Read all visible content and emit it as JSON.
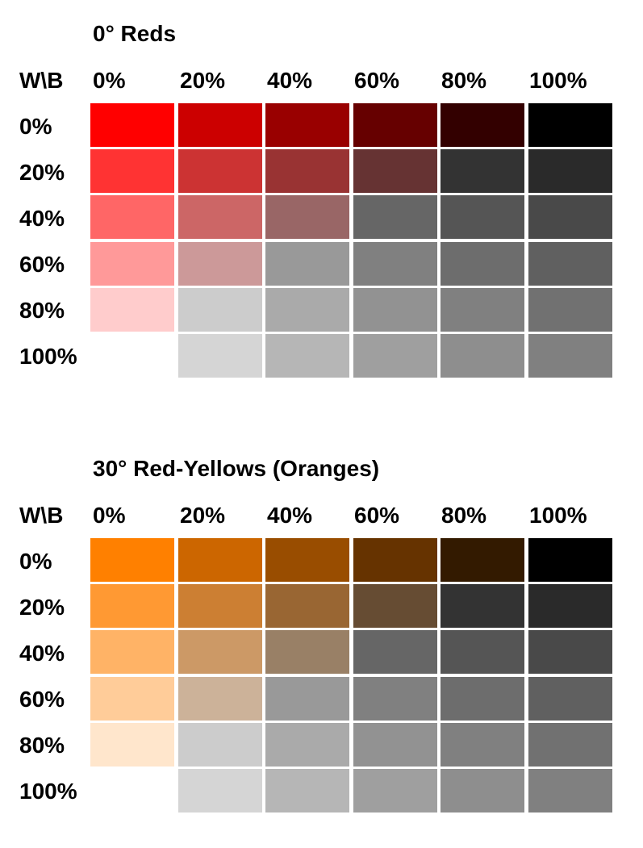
{
  "charts": [
    {
      "title": "0° Reds",
      "corner_label": "W\\B",
      "col_labels": [
        "0%",
        "20%",
        "40%",
        "60%",
        "80%",
        "100%"
      ],
      "row_labels": [
        "0%",
        "20%",
        "40%",
        "60%",
        "80%",
        "100%"
      ],
      "colors": [
        [
          "#ff0000",
          "#cc0000",
          "#990000",
          "#660000",
          "#330000",
          "#000000"
        ],
        [
          "#ff3333",
          "#cc3333",
          "#993333",
          "#663333",
          "#333333",
          "#2a2a2a"
        ],
        [
          "#ff6666",
          "#cc6666",
          "#996666",
          "#666666",
          "#555555",
          "#494949"
        ],
        [
          "#ff9999",
          "#cc9999",
          "#999999",
          "#808080",
          "#6d6d6d",
          "#606060"
        ],
        [
          "#ffcccc",
          "#cccccc",
          "#aaaaaa",
          "#929292",
          "#808080",
          "#717171"
        ],
        [
          null,
          "#d5d5d5",
          "#b6b6b6",
          "#9f9f9f",
          "#8e8e8e",
          "#808080"
        ]
      ]
    },
    {
      "title": "30° Red-Yellows (Oranges)",
      "corner_label": "W\\B",
      "col_labels": [
        "0%",
        "20%",
        "40%",
        "60%",
        "80%",
        "100%"
      ],
      "row_labels": [
        "0%",
        "20%",
        "40%",
        "60%",
        "80%",
        "100%"
      ],
      "colors": [
        [
          "#ff8000",
          "#cc6600",
          "#994d00",
          "#663300",
          "#331a00",
          "#000000"
        ],
        [
          "#ff9933",
          "#cc7f33",
          "#996633",
          "#664c33",
          "#333333",
          "#2a2a2a"
        ],
        [
          "#ffb366",
          "#cc9966",
          "#998066",
          "#666666",
          "#555555",
          "#494949"
        ],
        [
          "#ffcc99",
          "#ccb299",
          "#999999",
          "#808080",
          "#6d6d6d",
          "#606060"
        ],
        [
          "#ffe6cc",
          "#cccccc",
          "#aaaaaa",
          "#929292",
          "#808080",
          "#717171"
        ],
        [
          null,
          "#d5d5d5",
          "#b6b6b6",
          "#9f9f9f",
          "#8e8e8e",
          "#808080"
        ]
      ]
    }
  ]
}
